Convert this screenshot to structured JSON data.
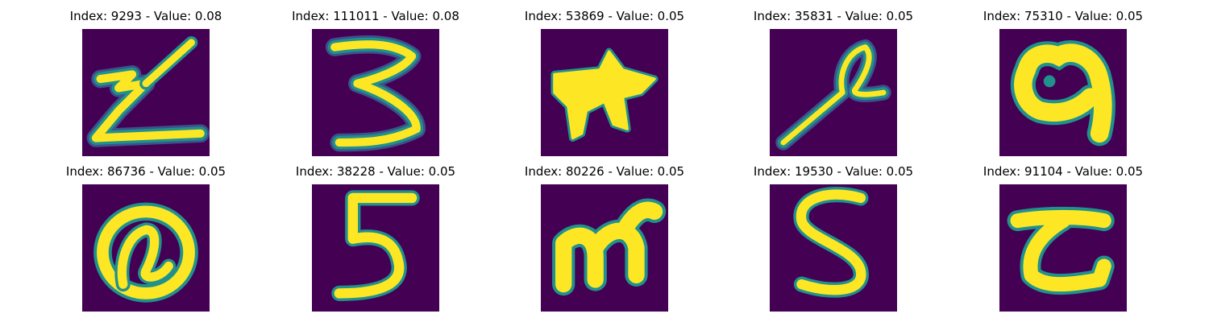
{
  "colors": {
    "background": "#440154",
    "stroke_inner": "#fde725",
    "stroke_edge": "#21918c",
    "halo": "#3b528b"
  },
  "panels": [
    {
      "index": "9293",
      "value": "0.08",
      "title": "Index: 9293 - Value: 0.08",
      "glyph": "z"
    },
    {
      "index": "111011",
      "value": "0.08",
      "title": "Index: 111011 - Value: 0.08",
      "glyph": "3"
    },
    {
      "index": "53869",
      "value": "0.05",
      "title": "Index: 53869 - Value: 0.05",
      "glyph": "blob"
    },
    {
      "index": "35831",
      "value": "0.05",
      "title": "Index: 35831 - Value: 0.05",
      "glyph": "loop"
    },
    {
      "index": "75310",
      "value": "0.05",
      "title": "Index: 75310 - Value: 0.05",
      "glyph": "ring"
    },
    {
      "index": "86736",
      "value": "0.05",
      "title": "Index: 86736 - Value: 0.05",
      "glyph": "at"
    },
    {
      "index": "38228",
      "value": "0.05",
      "title": "Index: 38228 - Value: 0.05",
      "glyph": "5"
    },
    {
      "index": "80226",
      "value": "0.05",
      "title": "Index: 80226 - Value: 0.05",
      "glyph": "m"
    },
    {
      "index": "19530",
      "value": "0.05",
      "title": "Index: 19530 - Value: 0.05",
      "glyph": "s"
    },
    {
      "index": "91104",
      "value": "0.05",
      "title": "Index: 91104 - Value: 0.05",
      "glyph": "c"
    }
  ]
}
